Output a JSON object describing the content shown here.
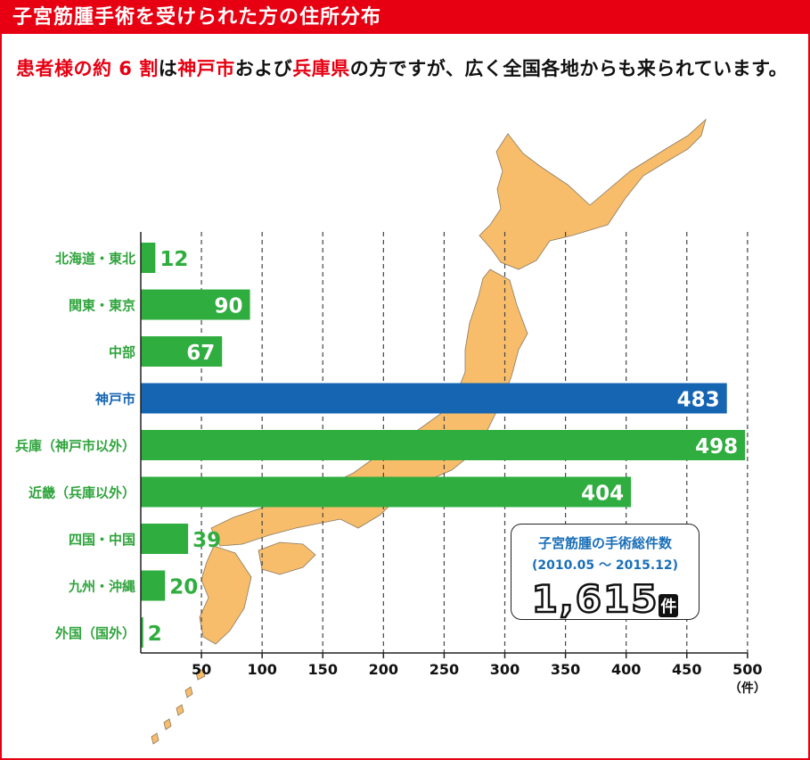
{
  "header": {
    "title": "子宮筋腫手術を受けられた方の住所分布"
  },
  "intro": {
    "t1": "患者様の約 6 割",
    "t2": "は",
    "t3": "神戸市",
    "t4": "および",
    "t5": "兵庫県",
    "t6": "の方ですが、広く全国各地からも来られています。"
  },
  "summary": {
    "title": "子宮筋腫の手術総件数",
    "period": "(2010.05 ～ 2015.12)",
    "total": "1,615",
    "unit": "件"
  },
  "colors": {
    "accent": "#e60012",
    "bar": "#2fad3f",
    "highlight_bar": "#1565b3",
    "map": "#f7bd6b",
    "label": "#2fa43c"
  },
  "chart_data": {
    "type": "bar",
    "orientation": "horizontal",
    "categories": [
      "北海道・東北",
      "関東・東京",
      "中部",
      "神戸市",
      "兵庫（神戸市以外）",
      "近畿（兵庫以外）",
      "四国・中国",
      "九州・沖縄",
      "外国（国外）"
    ],
    "values": [
      12,
      90,
      67,
      483,
      498,
      404,
      39,
      20,
      2
    ],
    "highlight": "神戸市",
    "xlim": [
      0,
      500
    ],
    "xticks": [
      50,
      100,
      150,
      200,
      250,
      300,
      350,
      400,
      450,
      500
    ],
    "x_unit": "（件）",
    "grid": true
  }
}
